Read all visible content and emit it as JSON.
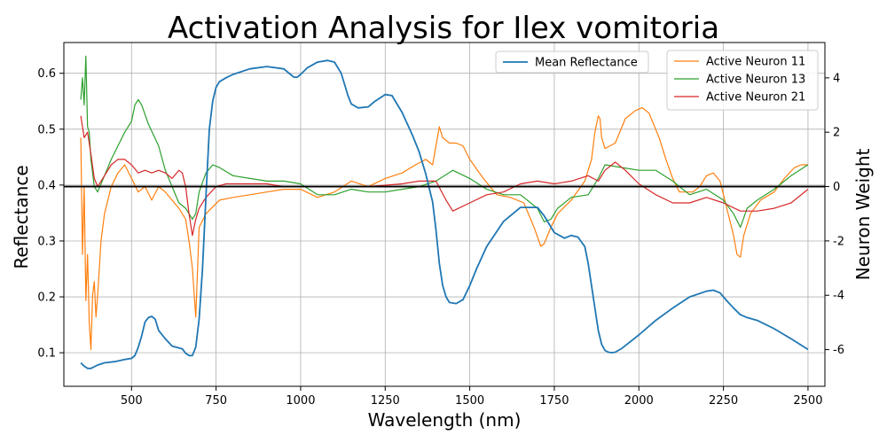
{
  "chart_data": {
    "type": "line",
    "title": "Activation Analysis for Ilex vomitoria",
    "xlabel": "Wavelength (nm)",
    "ylabel": "Reflectance",
    "y2label": "Neuron Weight",
    "xlim": [
      300,
      2550
    ],
    "ylim": [
      0.04,
      0.655
    ],
    "y2lim": [
      -7.35,
      5.3
    ],
    "xticks": [
      500,
      750,
      1000,
      1250,
      1500,
      1750,
      2000,
      2250,
      2500
    ],
    "yticks": [
      0.1,
      0.2,
      0.3,
      0.4,
      0.5,
      0.6
    ],
    "y2ticks": [
      -6,
      -4,
      -2,
      0,
      2,
      4
    ],
    "grid": true,
    "zero_line": 0,
    "legend_left": {
      "placement": "upper-center",
      "entries": [
        "Mean Reflectance"
      ]
    },
    "legend_right": {
      "placement": "upper-right",
      "entries": [
        "Active Neuron 11",
        "Active Neuron 13",
        "Active Neuron 21"
      ]
    },
    "series": [
      {
        "name": "Mean Reflectance",
        "axis": "left",
        "color": "#1f77b4",
        "x": [
          350,
          360,
          370,
          380,
          400,
          420,
          450,
          480,
          500,
          510,
          520,
          530,
          540,
          550,
          560,
          570,
          580,
          600,
          620,
          650,
          660,
          670,
          680,
          690,
          700,
          710,
          720,
          730,
          740,
          750,
          760,
          780,
          800,
          850,
          900,
          950,
          970,
          980,
          990,
          1000,
          1020,
          1050,
          1080,
          1100,
          1120,
          1140,
          1150,
          1170,
          1200,
          1220,
          1250,
          1270,
          1300,
          1330,
          1350,
          1370,
          1390,
          1400,
          1410,
          1420,
          1430,
          1440,
          1460,
          1480,
          1500,
          1520,
          1550,
          1600,
          1650,
          1700,
          1720,
          1750,
          1780,
          1800,
          1820,
          1840,
          1850,
          1860,
          1870,
          1880,
          1890,
          1900,
          1910,
          1920,
          1930,
          1950,
          2000,
          2050,
          2100,
          2150,
          2200,
          2220,
          2240,
          2260,
          2280,
          2300,
          2320,
          2350,
          2400,
          2450,
          2500
        ],
        "values": [
          0.082,
          0.076,
          0.072,
          0.072,
          0.078,
          0.082,
          0.084,
          0.088,
          0.09,
          0.095,
          0.11,
          0.13,
          0.155,
          0.163,
          0.165,
          0.16,
          0.14,
          0.125,
          0.112,
          0.107,
          0.099,
          0.095,
          0.095,
          0.11,
          0.16,
          0.25,
          0.38,
          0.5,
          0.55,
          0.575,
          0.585,
          0.592,
          0.598,
          0.608,
          0.612,
          0.608,
          0.598,
          0.593,
          0.593,
          0.598,
          0.61,
          0.62,
          0.623,
          0.62,
          0.6,
          0.56,
          0.545,
          0.538,
          0.54,
          0.55,
          0.562,
          0.56,
          0.53,
          0.49,
          0.46,
          0.42,
          0.37,
          0.32,
          0.26,
          0.22,
          0.2,
          0.19,
          0.188,
          0.195,
          0.22,
          0.25,
          0.29,
          0.335,
          0.36,
          0.36,
          0.345,
          0.315,
          0.305,
          0.31,
          0.307,
          0.29,
          0.26,
          0.22,
          0.18,
          0.14,
          0.115,
          0.104,
          0.101,
          0.1,
          0.101,
          0.108,
          0.132,
          0.158,
          0.18,
          0.2,
          0.21,
          0.212,
          0.207,
          0.193,
          0.18,
          0.168,
          0.163,
          0.158,
          0.143,
          0.125,
          0.106
        ]
      },
      {
        "name": "Active Neuron 11",
        "axis": "right",
        "color": "#ff7f0e",
        "x": [
          350,
          355,
          360,
          365,
          370,
          375,
          380,
          385,
          390,
          395,
          400,
          410,
          420,
          440,
          460,
          480,
          500,
          520,
          540,
          560,
          580,
          600,
          620,
          640,
          660,
          670,
          680,
          690,
          700,
          720,
          760,
          800,
          850,
          900,
          950,
          1000,
          1050,
          1100,
          1150,
          1200,
          1250,
          1300,
          1340,
          1370,
          1390,
          1400,
          1410,
          1420,
          1440,
          1460,
          1480,
          1500,
          1540,
          1580,
          1620,
          1660,
          1690,
          1710,
          1720,
          1740,
          1760,
          1800,
          1840,
          1860,
          1870,
          1880,
          1885,
          1890,
          1900,
          1930,
          1960,
          1990,
          2010,
          2030,
          2060,
          2080,
          2100,
          2120,
          2140,
          2160,
          2180,
          2200,
          2220,
          2240,
          2260,
          2280,
          2290,
          2300,
          2310,
          2330,
          2360,
          2400,
          2430,
          2460,
          2480,
          2500
        ],
        "values": [
          1.8,
          -2.5,
          0.0,
          -4.2,
          -2.5,
          -5.0,
          -6.0,
          -4.0,
          -3.5,
          -4.8,
          -4.0,
          -2.0,
          -1.0,
          0.0,
          0.5,
          0.8,
          0.3,
          -0.2,
          0.0,
          -0.5,
          0.0,
          -0.2,
          -0.5,
          -0.8,
          -1.2,
          -2.0,
          -3.0,
          -4.8,
          -1.5,
          -1.0,
          -0.5,
          -0.4,
          -0.3,
          -0.2,
          -0.1,
          -0.1,
          -0.4,
          -0.2,
          0.2,
          0.0,
          0.3,
          0.5,
          0.8,
          1.0,
          0.8,
          1.5,
          2.2,
          1.8,
          1.6,
          1.6,
          1.5,
          1.0,
          0.3,
          -0.3,
          -0.4,
          -0.6,
          -1.5,
          -2.2,
          -2.1,
          -1.5,
          -1.0,
          -0.5,
          0.2,
          1.0,
          2.0,
          2.6,
          2.5,
          1.8,
          1.4,
          1.6,
          2.5,
          2.8,
          2.9,
          2.7,
          1.8,
          1.0,
          0.3,
          -0.2,
          -0.2,
          -0.2,
          0.0,
          0.4,
          0.5,
          0.2,
          -0.8,
          -1.8,
          -2.5,
          -2.6,
          -1.8,
          -1.0,
          -0.5,
          -0.2,
          0.3,
          0.7,
          0.8,
          0.8
        ]
      },
      {
        "name": "Active Neuron 13",
        "axis": "right",
        "color": "#2ca02c",
        "x": [
          350,
          355,
          360,
          365,
          370,
          375,
          380,
          390,
          400,
          420,
          440,
          460,
          480,
          500,
          510,
          520,
          530,
          550,
          580,
          600,
          620,
          640,
          660,
          680,
          690,
          700,
          720,
          740,
          760,
          800,
          850,
          900,
          950,
          1000,
          1050,
          1100,
          1150,
          1200,
          1250,
          1300,
          1350,
          1400,
          1450,
          1500,
          1550,
          1600,
          1650,
          1700,
          1720,
          1740,
          1760,
          1800,
          1850,
          1880,
          1900,
          1950,
          2000,
          2050,
          2100,
          2150,
          2200,
          2250,
          2280,
          2300,
          2320,
          2350,
          2400,
          2450,
          2500
        ],
        "values": [
          3.2,
          4.0,
          3.0,
          4.8,
          2.2,
          2.0,
          1.0,
          0.0,
          -0.2,
          0.4,
          1.0,
          1.5,
          2.0,
          2.4,
          3.0,
          3.2,
          3.0,
          2.3,
          1.5,
          0.6,
          0.0,
          -0.6,
          -0.8,
          -1.2,
          -1.0,
          -0.2,
          0.5,
          0.8,
          0.7,
          0.4,
          0.3,
          0.2,
          0.2,
          0.1,
          -0.3,
          -0.3,
          -0.1,
          -0.2,
          -0.2,
          -0.1,
          0.0,
          0.2,
          0.6,
          0.3,
          -0.1,
          -0.3,
          -0.3,
          -0.8,
          -1.3,
          -1.2,
          -0.8,
          -0.4,
          -0.3,
          0.3,
          0.8,
          0.7,
          0.6,
          0.6,
          0.2,
          -0.3,
          -0.1,
          -0.5,
          -1.0,
          -1.5,
          -0.8,
          -0.5,
          -0.1,
          0.4,
          0.8
        ]
      },
      {
        "name": "Active Neuron 21",
        "axis": "right",
        "color": "#d62728",
        "x": [
          350,
          360,
          370,
          380,
          390,
          400,
          420,
          440,
          460,
          480,
          500,
          520,
          540,
          560,
          580,
          600,
          620,
          640,
          650,
          660,
          670,
          680,
          690,
          700,
          720,
          750,
          780,
          800,
          850,
          900,
          950,
          1000,
          1100,
          1200,
          1300,
          1350,
          1400,
          1430,
          1450,
          1500,
          1550,
          1600,
          1650,
          1700,
          1750,
          1800,
          1850,
          1880,
          1900,
          1930,
          1960,
          2000,
          2050,
          2100,
          2150,
          2200,
          2250,
          2300,
          2350,
          2400,
          2450,
          2500
        ],
        "values": [
          2.6,
          1.8,
          2.0,
          1.2,
          0.3,
          0.0,
          0.4,
          0.8,
          1.0,
          1.0,
          0.8,
          0.5,
          0.6,
          0.5,
          0.6,
          0.5,
          0.3,
          0.6,
          0.5,
          0.0,
          -1.0,
          -1.8,
          -1.2,
          -0.8,
          -0.4,
          0.0,
          0.1,
          0.1,
          0.1,
          0.1,
          0.0,
          0.0,
          0.0,
          0.0,
          0.1,
          0.2,
          0.2,
          -0.5,
          -0.9,
          -0.6,
          -0.3,
          -0.2,
          0.1,
          0.2,
          0.1,
          0.2,
          0.4,
          0.2,
          0.6,
          0.9,
          0.6,
          0.1,
          -0.3,
          -0.6,
          -0.6,
          -0.4,
          -0.6,
          -0.9,
          -0.9,
          -0.8,
          -0.6,
          -0.1
        ]
      }
    ]
  }
}
